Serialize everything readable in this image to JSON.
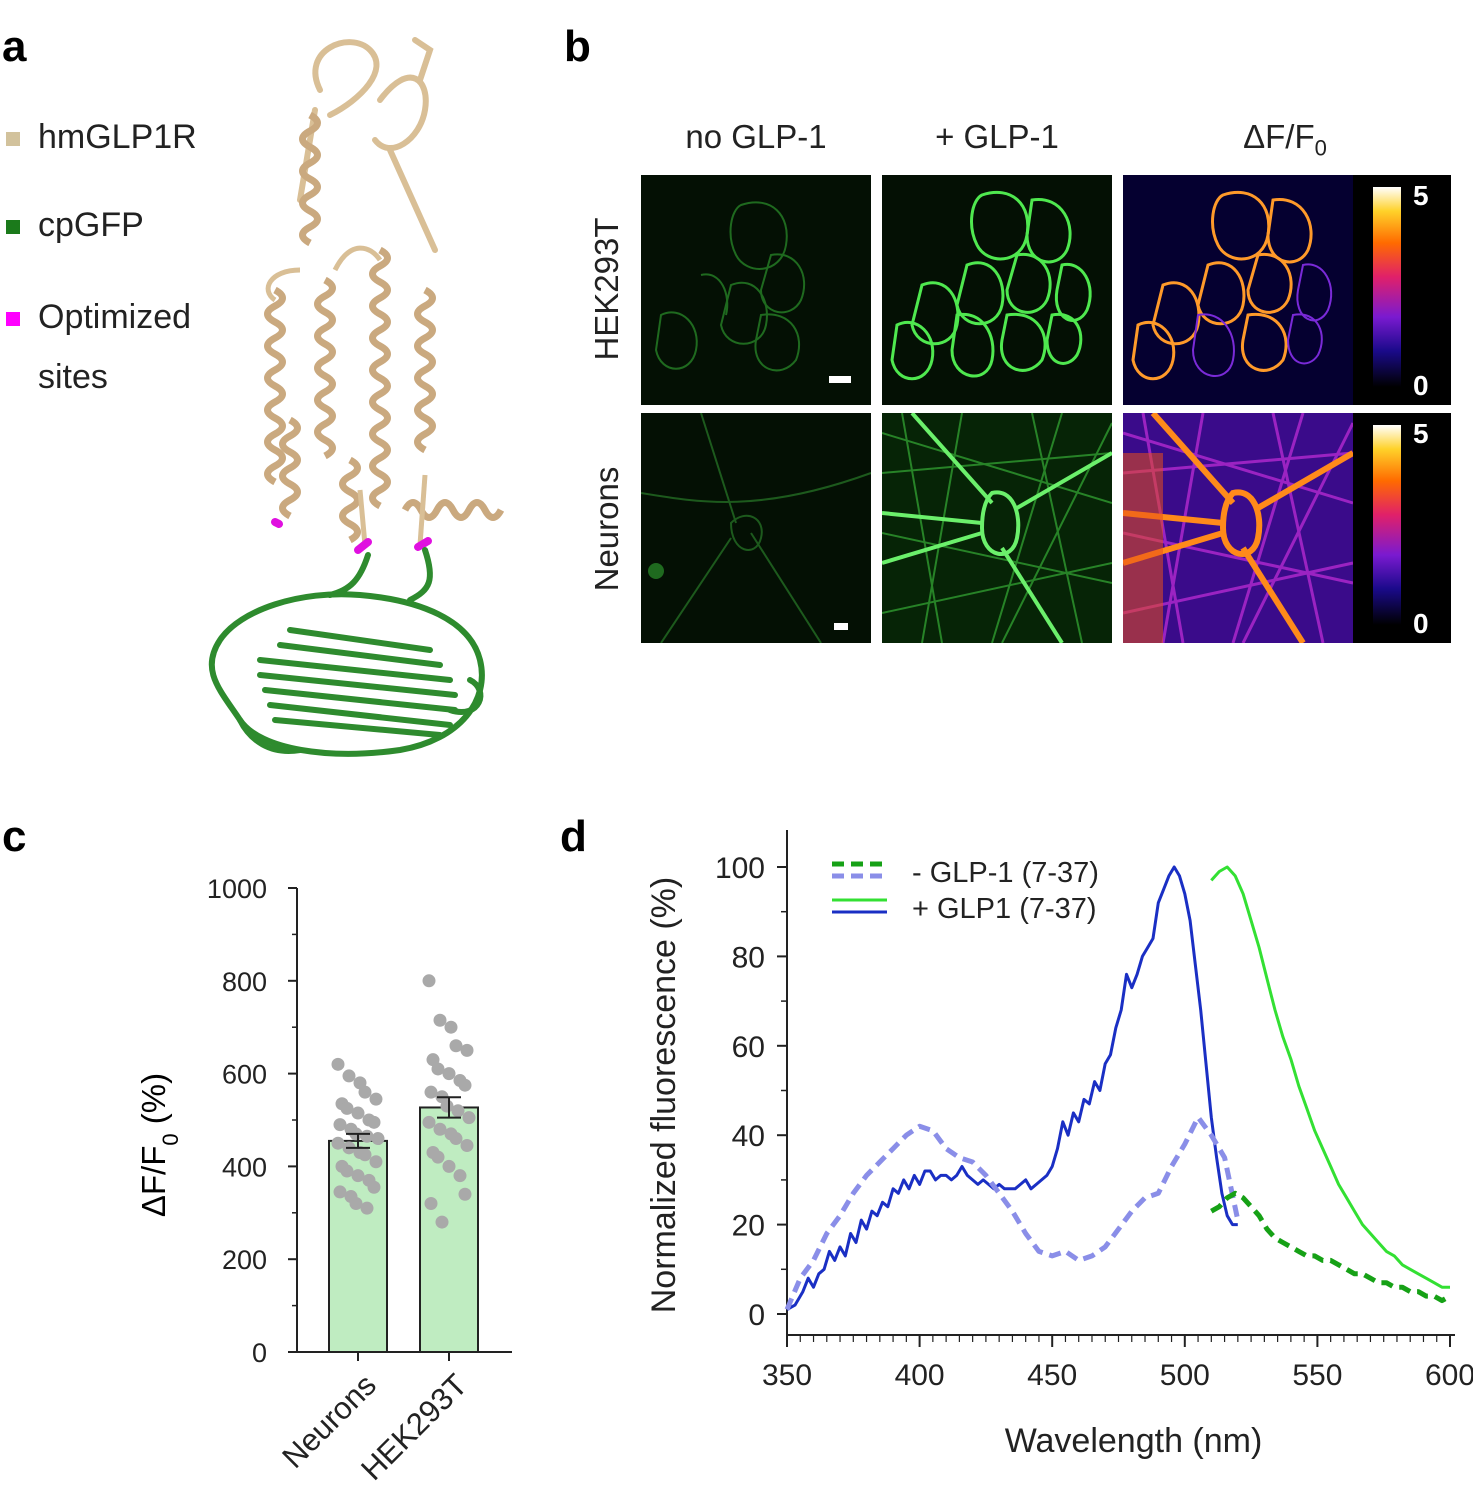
{
  "panel_a": {
    "letter": "a",
    "legend": [
      {
        "label": "hmGLP1R",
        "color": "#d2c29c"
      },
      {
        "label": "cpGFP",
        "color": "#1b7a1b"
      },
      {
        "label": "Optimized sites",
        "line1": "Optimized",
        "line2": "sites",
        "color": "#ff00ff"
      }
    ],
    "colors": {
      "receptor": "#d9bf96",
      "gfp": "#2e8b2e",
      "sites": "#e010e0"
    }
  },
  "panel_b": {
    "letter": "b",
    "columns": [
      "no GLP-1",
      "+ GLP-1",
      "ΔF/F"
    ],
    "delta_sub": "0",
    "rows": [
      "HEK293T",
      "Neurons"
    ],
    "colorbar": {
      "max_label": "5",
      "min_label": "0"
    }
  },
  "panel_c": {
    "letter": "c",
    "chart_data": {
      "type": "bar",
      "categories": [
        "Neurons",
        "HEK293T"
      ],
      "values": [
        455,
        527
      ],
      "sem": [
        15,
        22
      ],
      "ylabel_main": "ΔF/F",
      "ylabel_sub": "0",
      "ylabel_unit": " (%)",
      "ylim": [
        0,
        1000
      ],
      "yticks": [
        0,
        200,
        400,
        600,
        800,
        1000
      ],
      "bar_color": "#bfecc1",
      "point_color": "#a9a9a9",
      "points": [
        [
          620,
          595,
          580,
          560,
          545,
          535,
          525,
          515,
          500,
          495,
          490,
          480,
          470,
          465,
          460,
          450,
          440,
          430,
          425,
          410,
          400,
          390,
          380,
          370,
          355,
          345,
          335,
          320,
          310
        ],
        [
          800,
          715,
          700,
          660,
          650,
          630,
          610,
          600,
          585,
          575,
          560,
          550,
          530,
          520,
          505,
          495,
          480,
          470,
          460,
          445,
          430,
          420,
          400,
          380,
          340,
          320,
          280
        ]
      ]
    }
  },
  "panel_d": {
    "letter": "d",
    "chart_data": {
      "type": "line",
      "xlabel": "Wavelength (nm)",
      "ylabel": "Normalized fluorescence (%)",
      "xlim": [
        350,
        600
      ],
      "ylim": [
        0,
        100
      ],
      "xticks": [
        350,
        400,
        450,
        500,
        550,
        600
      ],
      "yticks": [
        0,
        20,
        40,
        60,
        80,
        100
      ],
      "legend": [
        "- GLP-1 (7-37)",
        "+ GLP1 (7-37)"
      ],
      "colors": {
        "dark_green": "#16a116",
        "light_green": "#33e033",
        "blue": "#1a2fc4",
        "light_blue": "#8a8ee8"
      },
      "series": [
        {
          "name": "+ GLP1 (7-37)",
          "style": "solid",
          "color": "blue",
          "x": [
            350,
            353,
            356,
            358,
            360,
            362,
            364,
            366,
            368,
            370,
            372,
            374,
            376,
            378,
            380,
            382,
            384,
            386,
            388,
            390,
            392,
            394,
            396,
            398,
            400,
            402,
            404,
            406,
            408,
            410,
            412,
            414,
            416,
            418,
            420,
            422,
            424,
            426,
            428,
            430,
            432,
            434,
            436,
            438,
            440,
            442,
            444,
            446,
            448,
            450,
            452,
            454,
            456,
            458,
            460,
            462,
            464,
            466,
            468,
            470,
            472,
            474,
            476,
            478,
            480,
            482,
            484,
            486,
            488,
            490,
            492,
            494,
            496,
            498,
            500,
            502,
            504,
            506,
            508,
            510,
            512,
            514,
            516,
            518,
            520
          ],
          "y": [
            1,
            2,
            5,
            8,
            6,
            9,
            10,
            14,
            12,
            15,
            13,
            18,
            16,
            21,
            19,
            23,
            22,
            25,
            24,
            28,
            27,
            30,
            28,
            31,
            29,
            32,
            32,
            30,
            31,
            31,
            30,
            31,
            33,
            31,
            30,
            29,
            30,
            29,
            28,
            29,
            28,
            28,
            28,
            29,
            30,
            28,
            29,
            30,
            31,
            33,
            37,
            43,
            40,
            45,
            43,
            48,
            47,
            52,
            50,
            56,
            58,
            64,
            68,
            76,
            73,
            76,
            80,
            82,
            84,
            92,
            95,
            98,
            100,
            98,
            94,
            88,
            78,
            68,
            56,
            44,
            35,
            27,
            22,
            20,
            20
          ]
        },
        {
          "name": "- GLP-1 (7-37)",
          "style": "dashed",
          "color": "light_blue",
          "x": [
            350,
            355,
            360,
            365,
            370,
            375,
            380,
            385,
            390,
            395,
            400,
            405,
            410,
            415,
            420,
            425,
            430,
            435,
            440,
            445,
            450,
            455,
            460,
            465,
            470,
            475,
            480,
            485,
            490,
            495,
            500,
            505,
            510,
            515,
            520
          ],
          "y": [
            1,
            8,
            12,
            18,
            22,
            27,
            31,
            34,
            37,
            40,
            42,
            41,
            37,
            35,
            34,
            31,
            27,
            23,
            18,
            14,
            13,
            14,
            12,
            13,
            15,
            19,
            23,
            26,
            27,
            33,
            38,
            44,
            40,
            35,
            21
          ]
        },
        {
          "name": "+ GLP1 (7-37)",
          "style": "solid",
          "color": "light_green",
          "x": [
            510,
            513,
            516,
            519,
            522,
            525,
            528,
            531,
            534,
            537,
            540,
            543,
            546,
            549,
            552,
            555,
            558,
            561,
            564,
            567,
            570,
            573,
            576,
            579,
            582,
            585,
            588,
            591,
            594,
            597,
            600
          ],
          "y": [
            97,
            99,
            100,
            98,
            94,
            88,
            82,
            75,
            68,
            62,
            57,
            51,
            46,
            41,
            37,
            33,
            29,
            26,
            23,
            20,
            18,
            16,
            14,
            13,
            11,
            10,
            9,
            8,
            7,
            6,
            6
          ]
        },
        {
          "name": "- GLP-1 (7-37)",
          "style": "dashed",
          "color": "dark_green",
          "x": [
            510,
            513,
            516,
            519,
            522,
            525,
            528,
            531,
            534,
            537,
            540,
            543,
            546,
            549,
            552,
            555,
            558,
            561,
            564,
            567,
            570,
            573,
            576,
            579,
            582,
            585,
            588,
            591,
            594,
            597,
            600
          ],
          "y": [
            23,
            24,
            26,
            27,
            26,
            24,
            22,
            19,
            17,
            16,
            15,
            14,
            13,
            13,
            12,
            12,
            11,
            10,
            9,
            9,
            8,
            7,
            7,
            6,
            6,
            5,
            5,
            4,
            4,
            3,
            4
          ]
        }
      ]
    }
  }
}
